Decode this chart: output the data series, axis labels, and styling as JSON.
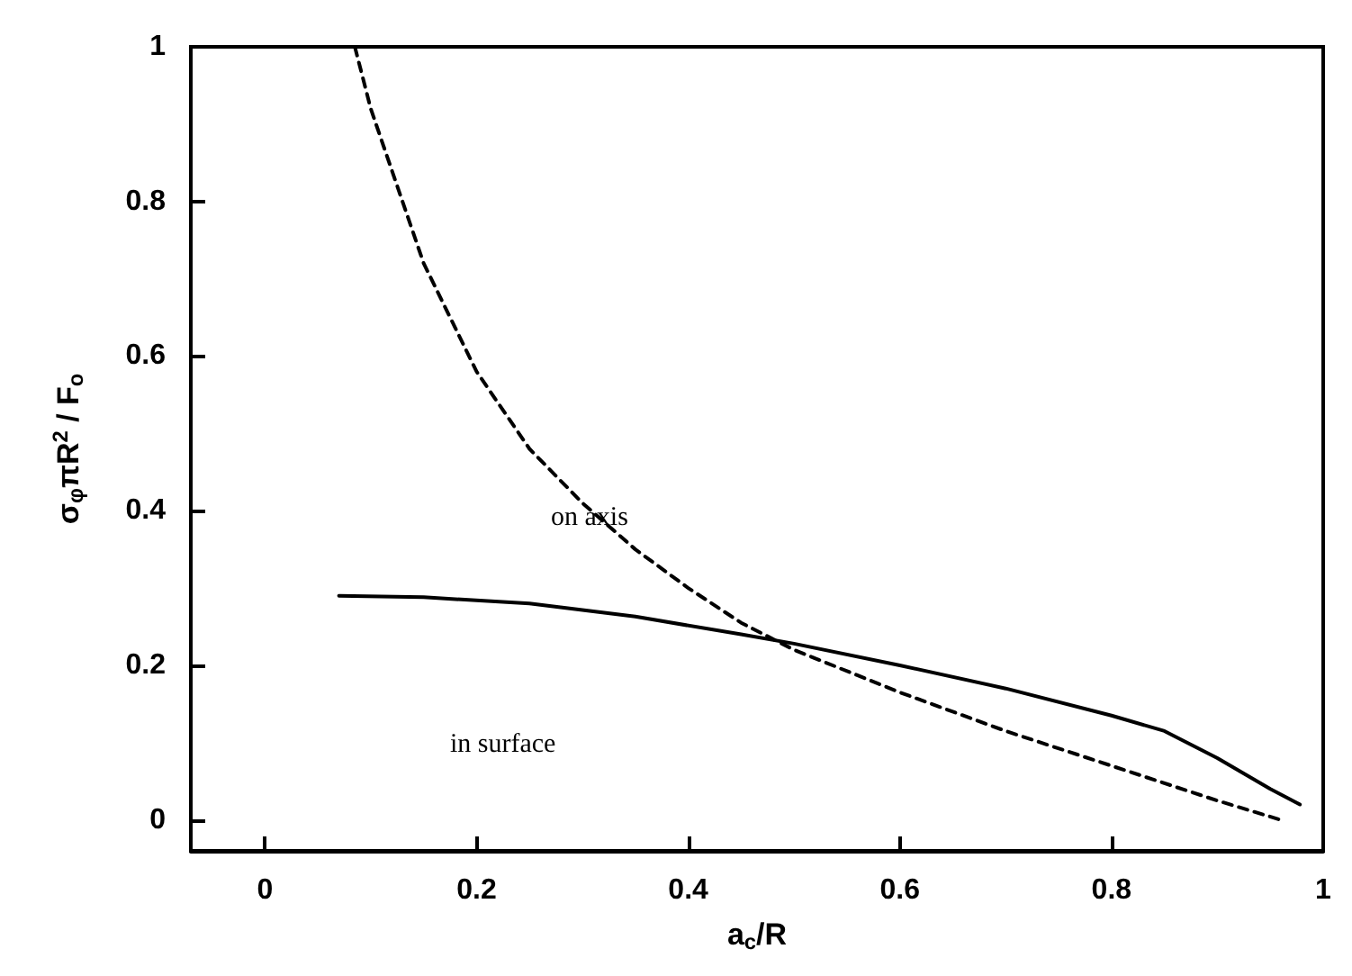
{
  "chart_data": {
    "type": "line",
    "xlabel": "a$_{c}$/R",
    "ylabel": "σ$_{φ}$πR$^{2}$ / F$_{o}$",
    "xlim": [
      -0.07,
      1
    ],
    "ylim": [
      -0.04,
      1
    ],
    "xticks": [
      0,
      0.2,
      0.4,
      0.6,
      0.8,
      1
    ],
    "yticks": [
      0,
      0.2,
      0.4,
      0.6,
      0.8,
      1
    ],
    "grid": false,
    "marker": "none",
    "series": [
      {
        "color": "#000000",
        "line_style": "solid",
        "x": [
          0.07,
          0.15,
          0.25,
          0.35,
          0.45,
          0.5,
          0.6,
          0.7,
          0.8,
          0.85,
          0.9,
          0.95,
          0.978
        ],
        "values": [
          0.29,
          0.288,
          0.28,
          0.263,
          0.24,
          0.228,
          0.2,
          0.17,
          0.135,
          0.115,
          0.08,
          0.04,
          0.02
        ]
      },
      {
        "color": "#000000",
        "line_style": "dashed",
        "x": [
          0.085,
          0.1,
          0.15,
          0.2,
          0.25,
          0.3,
          0.35,
          0.4,
          0.45,
          0.5,
          0.6,
          0.7,
          0.8,
          0.9,
          0.96
        ],
        "values": [
          1.0,
          0.92,
          0.72,
          0.58,
          0.48,
          0.41,
          0.35,
          0.3,
          0.255,
          0.22,
          0.165,
          0.115,
          0.07,
          0.025,
          0
        ]
      }
    ],
    "annotations": [
      "on axis",
      "in surface"
    ]
  }
}
